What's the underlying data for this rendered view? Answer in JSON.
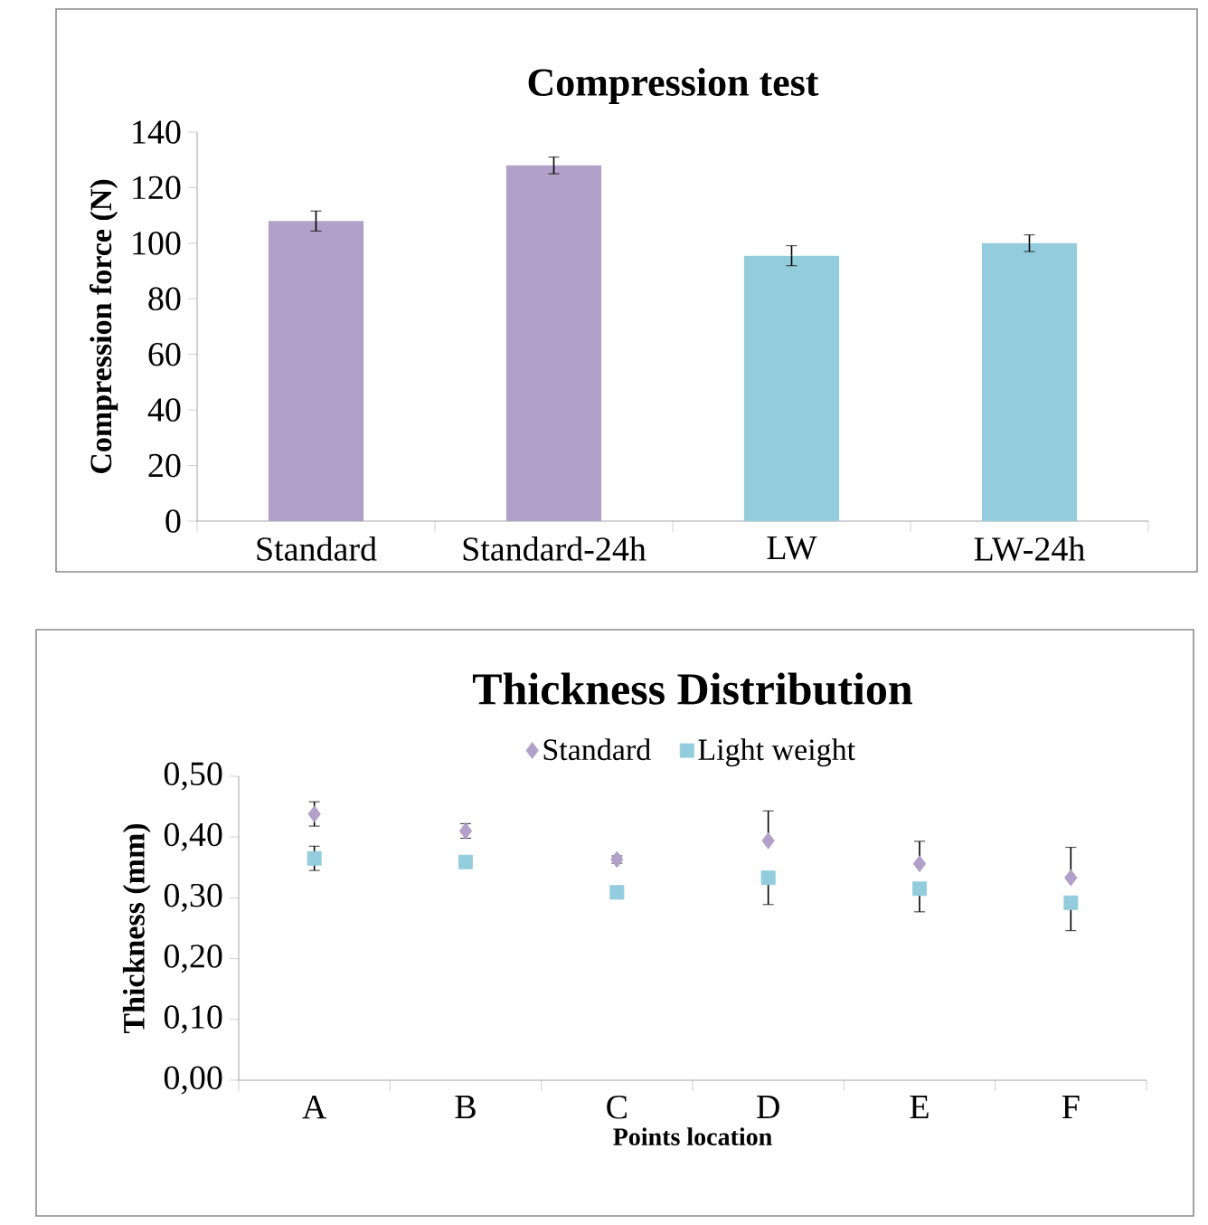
{
  "chart_data": [
    {
      "type": "bar",
      "title": "Compression test",
      "ylabel": "Compression force (N)",
      "categories": [
        "Standard",
        "Standard-24h",
        "LW",
        "LW-24h"
      ],
      "values": [
        108,
        128,
        95.5,
        100
      ],
      "errors": [
        3.6,
        3,
        3.6,
        3
      ],
      "colors": [
        "#b1a0c7",
        "#b1a0c7",
        "#93cddd",
        "#93cddd"
      ],
      "ylim": [
        0,
        140
      ],
      "yticks": [
        0,
        20,
        40,
        60,
        80,
        100,
        120,
        140
      ]
    },
    {
      "type": "scatter",
      "title": "Thickness Distribution",
      "xlabel": "Points location",
      "ylabel": "Thickness (mm)",
      "categories": [
        "A",
        "B",
        "C",
        "D",
        "E",
        "F"
      ],
      "series": [
        {
          "name": "Standard",
          "color": "#b1a0c7",
          "marker": "diamond",
          "values": [
            0.438,
            0.41,
            0.363,
            0.394,
            0.356,
            0.333
          ],
          "errors": [
            0.02,
            0.012,
            0.006,
            [
              0.394,
              0.443
            ],
            [
              0.356,
              0.393
            ],
            [
              0.333,
              0.383
            ]
          ]
        },
        {
          "name": "Light weight",
          "color": "#93cddd",
          "marker": "square",
          "values": [
            0.365,
            0.359,
            0.309,
            0.333,
            0.315,
            0.292
          ],
          "errors": [
            0.02,
            null,
            null,
            [
              0.289,
              0.333
            ],
            [
              0.277,
              0.315
            ],
            [
              0.246,
              0.292
            ]
          ]
        }
      ],
      "ylim": [
        0,
        0.5
      ],
      "yticks": [
        {
          "value": 0,
          "label": "0,00"
        },
        {
          "value": 0.1,
          "label": "0,10"
        },
        {
          "value": 0.2,
          "label": "0,20"
        },
        {
          "value": 0.3,
          "label": "0,30"
        },
        {
          "value": 0.4,
          "label": "0,40"
        },
        {
          "value": 0.5,
          "label": "0,50"
        }
      ],
      "legend": "top"
    }
  ]
}
